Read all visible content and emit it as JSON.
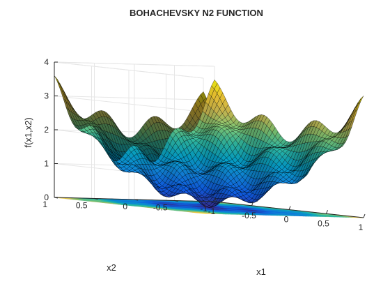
{
  "chart_data": {
    "type": "surface",
    "title": "BOHACHEVSKY N2 FUNCTION",
    "xlabel": "x1",
    "ylabel": "x2",
    "zlabel": "f(x1,x2)",
    "function": "f(x1,x2) = x1^2 + 2*x2^2 - 0.3*cos(3*pi*x1)*cos(4*pi*x2) + 0.3",
    "xlim": [
      -1,
      1
    ],
    "ylim": [
      -1,
      1
    ],
    "zlim": [
      0,
      4
    ],
    "x_ticks": [
      "-1",
      "-0.5",
      "0",
      "0.5",
      "1"
    ],
    "y_ticks": [
      "-1",
      "-0.5",
      "0",
      "0.5",
      "1"
    ],
    "z_ticks": [
      "0",
      "1",
      "2",
      "3",
      "4"
    ],
    "colormap": "parula",
    "grid": true,
    "contour_projection_at_zmin": true,
    "edge_color": "#000000"
  }
}
